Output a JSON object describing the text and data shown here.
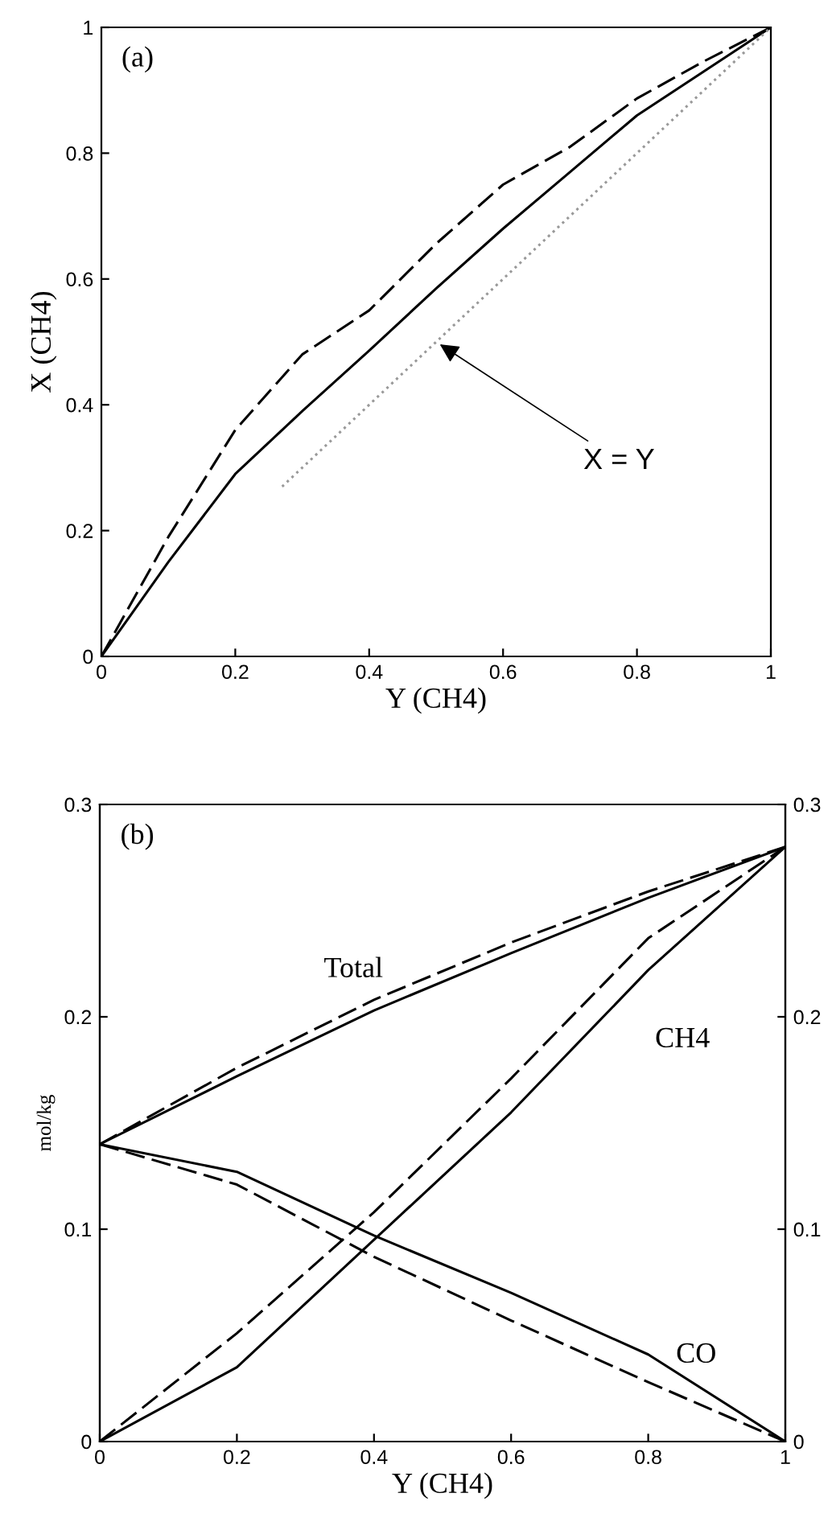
{
  "chart_data": [
    {
      "type": "line",
      "xlabel": "Y (CH4)",
      "ylabel": "X (CH4)",
      "xlim": [
        0,
        1
      ],
      "ylim": [
        0,
        1
      ],
      "xticks": [
        0,
        0.2,
        0.4,
        0.6,
        0.8,
        1
      ],
      "yticks": [
        0,
        0.2,
        0.4,
        0.6,
        0.8,
        1
      ],
      "grid": false,
      "legend": false,
      "series": [
        {
          "color": "#000000",
          "line_style": "dashed",
          "x": [
            0,
            0.1,
            0.2,
            0.3,
            0.4,
            0.5,
            0.6,
            0.7,
            0.8,
            0.9,
            1
          ],
          "values": [
            0,
            0.19,
            0.36,
            0.48,
            0.55,
            0.656,
            0.75,
            0.81,
            0.887,
            0.946,
            1
          ]
        },
        {
          "color": "#000000",
          "line_style": "solid",
          "x": [
            0,
            0.1,
            0.2,
            0.3,
            0.4,
            0.5,
            0.6,
            0.7,
            0.8,
            0.9,
            1
          ],
          "values": [
            0,
            0.15,
            0.29,
            0.39,
            0.486,
            0.585,
            0.68,
            0.77,
            0.86,
            0.93,
            1
          ]
        },
        {
          "color": "#999999",
          "line_style": "dotted",
          "x": [
            0.27,
            1
          ],
          "values": [
            0.27,
            1
          ]
        }
      ],
      "annotations": [
        "(a)",
        {
          "text": "X = Y",
          "x": 0.5,
          "y": 0.5
        }
      ]
    },
    {
      "type": "line",
      "xlabel": "Y (CH4)",
      "ylabel": "mol/kg",
      "xlim": [
        0,
        1
      ],
      "ylim": [
        0,
        0.3
      ],
      "xticks": [
        0,
        0.2,
        0.4,
        0.6,
        0.8,
        1
      ],
      "yticks": [
        0,
        0.1,
        0.2,
        0.3
      ],
      "y2lim": [
        0,
        0.3
      ],
      "y2ticks": [
        0,
        0.1,
        0.2,
        0.3
      ],
      "grid": false,
      "legend": false,
      "series": [
        {
          "color": "#000000",
          "line_style": "dashed",
          "x": [
            0,
            0.2,
            0.4,
            0.6,
            0.8,
            1
          ],
          "values": [
            0.14,
            0.176,
            0.208,
            0.235,
            0.259,
            0.28
          ]
        },
        {
          "color": "#000000",
          "line_style": "solid",
          "x": [
            0,
            0.2,
            0.4,
            0.6,
            0.8,
            1
          ],
          "values": [
            0.14,
            0.172,
            0.203,
            0.23,
            0.256,
            0.28
          ]
        },
        {
          "color": "#000000",
          "line_style": "dashed",
          "x": [
            0,
            0.2,
            0.4,
            0.6,
            0.8,
            1
          ],
          "values": [
            0,
            0.051,
            0.108,
            0.171,
            0.237,
            0.28
          ]
        },
        {
          "color": "#000000",
          "line_style": "solid",
          "x": [
            0,
            0.2,
            0.4,
            0.6,
            0.8,
            1
          ],
          "values": [
            0,
            0.035,
            0.095,
            0.155,
            0.222,
            0.28
          ]
        },
        {
          "color": "#000000",
          "line_style": "dashed",
          "x": [
            0,
            0.2,
            0.4,
            0.6,
            0.8,
            1
          ],
          "values": [
            0.14,
            0.121,
            0.087,
            0.057,
            0.028,
            0
          ]
        },
        {
          "color": "#000000",
          "line_style": "solid",
          "x": [
            0,
            0.2,
            0.4,
            0.6,
            0.8,
            1
          ],
          "values": [
            0.14,
            0.127,
            0.097,
            0.07,
            0.041,
            0
          ]
        }
      ],
      "annotations": [
        "(b)",
        "Total",
        "CH4",
        "CO"
      ]
    }
  ]
}
